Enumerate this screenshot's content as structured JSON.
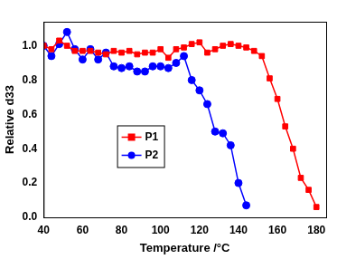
{
  "chart_data": {
    "type": "line",
    "x_label": "Temperature /°C",
    "y_label": "Relative d33",
    "xlim": [
      40,
      185
    ],
    "xticks": [
      40,
      60,
      80,
      100,
      120,
      140,
      160,
      180
    ],
    "ylim": [
      0,
      1.14
    ],
    "yticks": [
      {
        "value": 0,
        "label": "0.0"
      },
      {
        "value": 0.2,
        "label": "0.2"
      },
      {
        "value": 0.4,
        "label": "0.4"
      },
      {
        "value": 0.6,
        "label": "0.6"
      },
      {
        "value": 0.8,
        "label": "0.8"
      },
      {
        "value": 1,
        "label": "1.0"
      }
    ],
    "grid": false,
    "legend": "center",
    "series": [
      {
        "name": "P1",
        "color": "#ff0000",
        "marker": "square",
        "line_style": "solid",
        "x": [
          40,
          44,
          48,
          52,
          56,
          60,
          64,
          68,
          72,
          76,
          80,
          84,
          88,
          92,
          96,
          100,
          104,
          108,
          112,
          116,
          120,
          124,
          128,
          132,
          136,
          140,
          144,
          148,
          152,
          156,
          160,
          164,
          168,
          172,
          176,
          180
        ],
        "values": [
          1.0,
          0.98,
          1.03,
          1.0,
          0.97,
          0.97,
          0.97,
          0.96,
          0.95,
          0.97,
          0.96,
          0.97,
          0.95,
          0.96,
          0.96,
          0.98,
          0.93,
          0.98,
          0.99,
          1.01,
          1.02,
          0.96,
          0.98,
          1.0,
          1.01,
          1.0,
          0.99,
          0.97,
          0.94,
          0.81,
          0.69,
          0.53,
          0.4,
          0.23,
          0.16,
          0.06
        ]
      },
      {
        "name": "P2",
        "color": "#0000ff",
        "marker": "circle",
        "line_style": "solid",
        "x": [
          40,
          44,
          48,
          52,
          56,
          60,
          64,
          68,
          72,
          76,
          80,
          84,
          88,
          92,
          96,
          100,
          104,
          108,
          112,
          116,
          120,
          124,
          128,
          132,
          136,
          140,
          144
        ],
        "values": [
          1.0,
          0.94,
          1.01,
          1.08,
          0.98,
          0.92,
          0.98,
          0.92,
          0.96,
          0.88,
          0.87,
          0.88,
          0.85,
          0.85,
          0.88,
          0.88,
          0.87,
          0.9,
          0.94,
          0.8,
          0.74,
          0.66,
          0.5,
          0.49,
          0.42,
          0.2,
          0.07
        ]
      }
    ]
  }
}
